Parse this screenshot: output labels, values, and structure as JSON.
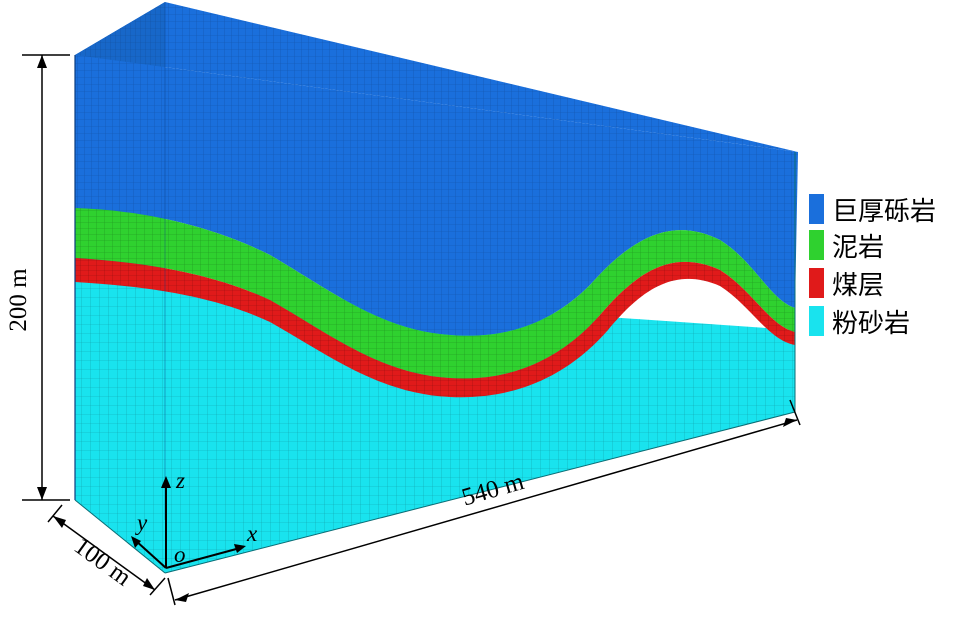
{
  "dimensions": {
    "height_label": "200 m",
    "length_label": "540 m",
    "width_label": "100 m"
  },
  "axes": {
    "z_label": "z",
    "y_label": "y",
    "x_label": "x",
    "origin_label": "o"
  },
  "legend": [
    {
      "label": "巨厚砾岩",
      "color": "#1a6fdc"
    },
    {
      "label": "泥岩",
      "color": "#2fd12f"
    },
    {
      "label": "煤层",
      "color": "#e01a1a"
    },
    {
      "label": "粉砂岩",
      "color": "#19e3ee"
    }
  ]
}
